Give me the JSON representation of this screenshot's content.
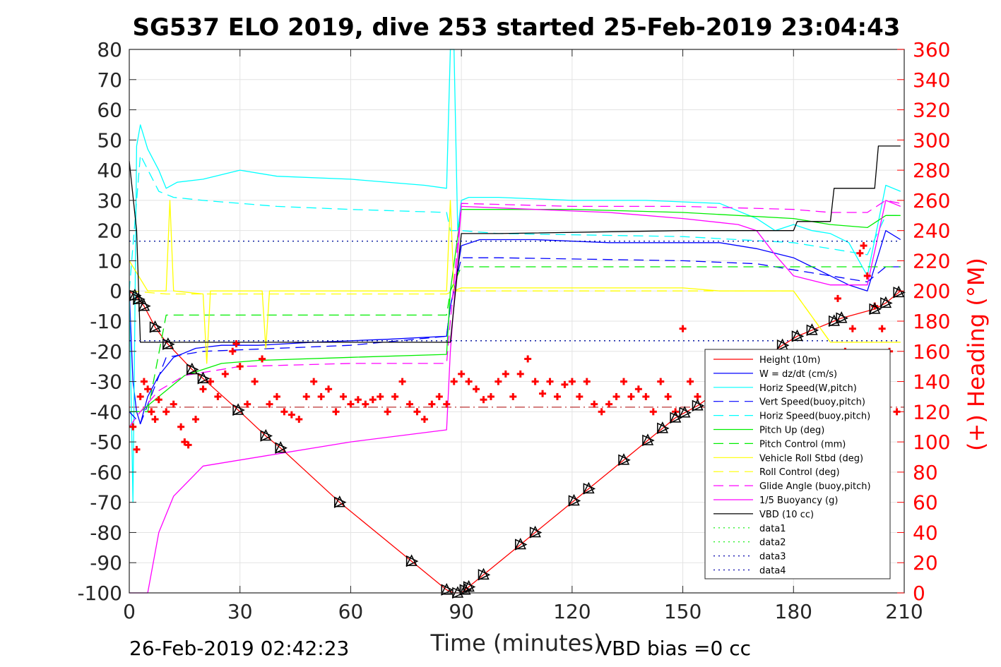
{
  "chart_data": {
    "type": "line",
    "title": "SG537 ELO 2019, dive 253 started 25-Feb-2019 23:04:43",
    "xlabel": "Time (minutes)",
    "ylabel": "",
    "y2label": "(+) Heading (°M)",
    "xlim": [
      0,
      210
    ],
    "ylim": [
      -100,
      80
    ],
    "y2lim": [
      0,
      360
    ],
    "x_ticks": [
      "0",
      "30",
      "60",
      "90",
      "120",
      "150",
      "180",
      "210"
    ],
    "y_ticks": [
      "80",
      "70",
      "60",
      "50",
      "40",
      "30",
      "20",
      "10",
      "0",
      "-10",
      "-20",
      "-30",
      "-40",
      "-50",
      "-60",
      "-70",
      "-80",
      "-90",
      "-100"
    ],
    "y2_ticks": [
      "360",
      "340",
      "320",
      "300",
      "280",
      "260",
      "240",
      "220",
      "200",
      "180",
      "160",
      "140",
      "120",
      "100",
      "80",
      "60",
      "40",
      "20",
      "0"
    ],
    "grid": true,
    "legend_position": "lower-right",
    "footer_left": "26-Feb-2019 02:42:23",
    "footer_right": "VBD bias =0 cc",
    "colors": {
      "height": "#ff0000",
      "w": "#0000ff",
      "hspeed": "#00ffff",
      "vspeed_buoy": "#0000ff",
      "hspeed_buoy": "#00ffff",
      "pitch": "#00ee00",
      "pitch_ctrl": "#00ee00",
      "roll": "#ffff00",
      "roll_ctrl": "#ffff00",
      "glide": "#ff00ff",
      "buoy": "#ff00ff",
      "vbd": "#000000",
      "heading": "#ff0000",
      "right_axis": "#ff0000"
    },
    "series": [
      {
        "name": "Height (10m)",
        "style": "solid",
        "color": "#ff0000",
        "x": [
          0,
          2,
          4,
          7,
          10,
          17,
          20,
          30,
          37,
          41,
          57,
          77,
          86,
          88,
          90,
          92,
          96,
          106,
          110,
          121,
          125,
          134,
          141,
          145,
          148,
          151,
          154,
          177,
          181,
          185,
          191,
          193,
          202,
          205,
          209
        ],
        "y": [
          0,
          -2,
          -5,
          -12,
          -17,
          -26,
          -29,
          -40,
          -48,
          -52,
          -70,
          -90,
          -99,
          -100,
          -100,
          -98,
          -94,
          -84,
          -80,
          -69,
          -65,
          -56,
          -49,
          -45,
          -42,
          -40,
          -38,
          -18,
          -15,
          -13,
          -10,
          -9,
          -6,
          -4,
          0
        ]
      },
      {
        "name": "W = dz/dt (cm/s)",
        "style": "solid",
        "color": "#0000ff",
        "x": [
          0,
          1,
          2,
          3,
          5,
          8,
          12,
          18,
          25,
          35,
          50,
          70,
          86,
          87,
          88,
          90,
          95,
          110,
          130,
          150,
          160,
          170,
          180,
          185,
          190,
          195,
          200,
          205,
          209
        ],
        "y": [
          0,
          -30,
          -40,
          -44,
          -35,
          -28,
          -22,
          -19,
          -18,
          -18,
          -17,
          -16,
          -15,
          -5,
          0,
          15,
          17,
          17,
          16,
          16,
          16,
          14,
          11,
          8,
          5,
          2,
          0,
          20,
          17
        ]
      },
      {
        "name": "Horiz Speed(W,pitch)",
        "style": "solid",
        "color": "#00ffff",
        "x": [
          0,
          1,
          2,
          3,
          5,
          8,
          10,
          13,
          20,
          30,
          40,
          60,
          80,
          86,
          87,
          88,
          89,
          90,
          92,
          100,
          120,
          140,
          160,
          170,
          175,
          180,
          185,
          190,
          195,
          200,
          205,
          209
        ],
        "y": [
          0,
          -70,
          48,
          55,
          47,
          40,
          34,
          36,
          37,
          40,
          38,
          37,
          35,
          34,
          80,
          80,
          20,
          30,
          31,
          31,
          30,
          30,
          29,
          24,
          20,
          22,
          20,
          19,
          16,
          5,
          35,
          33
        ]
      },
      {
        "name": "Vert Speed(buoy,pitch)",
        "style": "dashed",
        "color": "#0000ff",
        "x": [
          0,
          3,
          10,
          20,
          40,
          60,
          86,
          87,
          90,
          100,
          150,
          170,
          180,
          190,
          200,
          205,
          209
        ],
        "y": [
          -40,
          -44,
          -22,
          -20,
          -19,
          -18,
          -15,
          -5,
          11,
          11,
          10,
          9,
          7,
          5,
          3,
          8,
          8
        ]
      },
      {
        "name": "Horiz Speed(buoy,pitch)",
        "style": "dashed",
        "color": "#00ffff",
        "x": [
          0,
          3,
          8,
          12,
          20,
          40,
          60,
          86,
          87,
          90,
          100,
          150,
          180,
          190,
          200,
          205,
          209
        ],
        "y": [
          0,
          45,
          33,
          31,
          30,
          28,
          27,
          26,
          20,
          20,
          19,
          18,
          16,
          14,
          12,
          25,
          25
        ]
      },
      {
        "name": "Pitch Up (deg)",
        "style": "solid",
        "color": "#00ee00",
        "x": [
          0,
          3,
          8,
          15,
          25,
          35,
          60,
          86,
          87,
          90,
          120,
          150,
          180,
          190,
          200,
          205,
          209
        ],
        "y": [
          -40,
          -40,
          -35,
          -28,
          -24,
          -23,
          -22,
          -21,
          0,
          27,
          27,
          26,
          24,
          22,
          21,
          25,
          25
        ]
      },
      {
        "name": "Pitch Control (mm)",
        "style": "dashed",
        "color": "#00ee00",
        "x": [
          0,
          5,
          10,
          86,
          87,
          90,
          175,
          180,
          190,
          209
        ],
        "y": [
          -40,
          -40,
          -8,
          -8,
          0,
          8,
          8,
          8,
          8,
          8
        ]
      },
      {
        "name": "Vehicle Roll Stbd (deg)",
        "style": "solid",
        "color": "#ffff00",
        "x": [
          0,
          5,
          10,
          11,
          12,
          20,
          21,
          22,
          30,
          36,
          37,
          38,
          40,
          86,
          87,
          88,
          90,
          100,
          110,
          140,
          150,
          160,
          170,
          180,
          190,
          200,
          209
        ],
        "y": [
          10,
          0,
          0,
          30,
          0,
          -1,
          -24,
          0,
          0,
          0,
          -19,
          0,
          0,
          0,
          30,
          0,
          1,
          1,
          1,
          1,
          1,
          0,
          0,
          0,
          -17,
          -17,
          -17
        ]
      },
      {
        "name": "Roll Control (deg)",
        "style": "dashed",
        "color": "#ffff00",
        "x": [
          0,
          10,
          86,
          88,
          100,
          150,
          180,
          190,
          200,
          209
        ],
        "y": [
          0,
          -1,
          -1,
          0,
          0,
          0,
          0,
          -17,
          -17,
          -17
        ]
      },
      {
        "name": "Glide Angle (buoy,pitch)",
        "style": "dashed",
        "color": "#ff00ff",
        "x": [
          0,
          3,
          8,
          15,
          30,
          60,
          86,
          87,
          90,
          120,
          150,
          180,
          190,
          200,
          205,
          209
        ],
        "y": [
          -45,
          -40,
          -33,
          -28,
          -25,
          -24,
          -24,
          -10,
          29,
          28,
          28,
          27,
          26,
          26,
          30,
          29
        ]
      },
      {
        "name": "1/5 Buoyancy (g)",
        "style": "solid",
        "color": "#ff00ff",
        "x": [
          0,
          1,
          3,
          5,
          8,
          12,
          20,
          40,
          60,
          86,
          87,
          90,
          110,
          130,
          150,
          165,
          170,
          175,
          180,
          190,
          200,
          205,
          209
        ],
        "y": [
          -100,
          -100,
          -100,
          -100,
          -80,
          -68,
          -58,
          -54,
          -50,
          -46,
          -20,
          28,
          27,
          26,
          24,
          22,
          20,
          12,
          5,
          2,
          2,
          30,
          28
        ]
      },
      {
        "name": "VBD (10 cc)",
        "style": "solid",
        "color": "#000000",
        "x": [
          0,
          2,
          3,
          86,
          87,
          88,
          90,
          100,
          150,
          180,
          181,
          190,
          191,
          202,
          203,
          209
        ],
        "y": [
          43,
          20,
          -17,
          -17,
          -17,
          -5,
          19,
          19,
          20,
          20,
          23,
          23,
          34,
          34,
          48,
          48
        ]
      },
      {
        "name": "data1",
        "style": "dotted",
        "color": "#00ee00",
        "x": [
          0,
          209
        ],
        "y": [
          16.5,
          16.5
        ]
      },
      {
        "name": "data2",
        "style": "dotted",
        "color": "#00ee00",
        "x": [
          0,
          209
        ],
        "y": [
          -16.5,
          -16.5
        ]
      },
      {
        "name": "data3",
        "style": "dotted",
        "color": "#0000aa",
        "x": [
          0,
          209
        ],
        "y": [
          16.5,
          16.5
        ]
      },
      {
        "name": "data4",
        "style": "dotted",
        "color": "#0000aa",
        "x": [
          0,
          209
        ],
        "y": [
          -16.5,
          -16.5
        ]
      }
    ],
    "reference_line": {
      "y": -38.5,
      "style": "dashdot",
      "color": "#aa0000"
    },
    "heading_series": {
      "name": "(+) Heading",
      "axis": "right",
      "color": "#ff0000",
      "x": [
        1,
        2,
        3,
        4,
        5,
        6,
        7,
        8,
        10,
        12,
        14,
        15,
        16,
        18,
        20,
        22,
        24,
        26,
        28,
        29,
        30,
        32,
        34,
        36,
        38,
        40,
        42,
        44,
        46,
        48,
        50,
        52,
        54,
        56,
        58,
        60,
        62,
        64,
        66,
        68,
        70,
        72,
        74,
        76,
        78,
        80,
        82,
        84,
        86,
        88,
        90,
        92,
        94,
        96,
        98,
        100,
        102,
        104,
        106,
        108,
        110,
        112,
        114,
        116,
        118,
        120,
        122,
        124,
        126,
        128,
        130,
        132,
        134,
        136,
        138,
        140,
        142,
        144,
        146,
        148,
        150,
        152,
        154,
        192,
        194,
        196,
        198,
        199,
        200,
        202,
        204,
        206,
        208
      ],
      "y": [
        110,
        95,
        130,
        140,
        135,
        120,
        115,
        128,
        120,
        125,
        110,
        100,
        98,
        115,
        135,
        140,
        130,
        145,
        160,
        165,
        150,
        125,
        140,
        155,
        125,
        130,
        120,
        118,
        115,
        130,
        140,
        130,
        135,
        120,
        130,
        125,
        128,
        125,
        128,
        130,
        120,
        130,
        140,
        125,
        120,
        115,
        125,
        130,
        125,
        140,
        145,
        140,
        135,
        128,
        130,
        140,
        145,
        130,
        145,
        155,
        140,
        132,
        140,
        130,
        138,
        140,
        130,
        140,
        125,
        120,
        125,
        130,
        140,
        130,
        135,
        130,
        120,
        140,
        130,
        120,
        175,
        140,
        130,
        195,
        160,
        175,
        225,
        230,
        210,
        190,
        175,
        160,
        120
      ]
    },
    "triangle_markers_x": [
      1.5,
      2.5,
      4,
      7,
      10.5,
      17,
      20,
      29.5,
      37,
      41,
      57,
      76.5,
      86,
      89,
      91,
      92,
      96,
      106,
      110,
      120.5,
      124.5,
      134,
      140.5,
      144.5,
      148,
      150.5,
      154,
      177,
      181,
      185,
      191,
      193,
      202,
      205,
      208.5
    ]
  }
}
